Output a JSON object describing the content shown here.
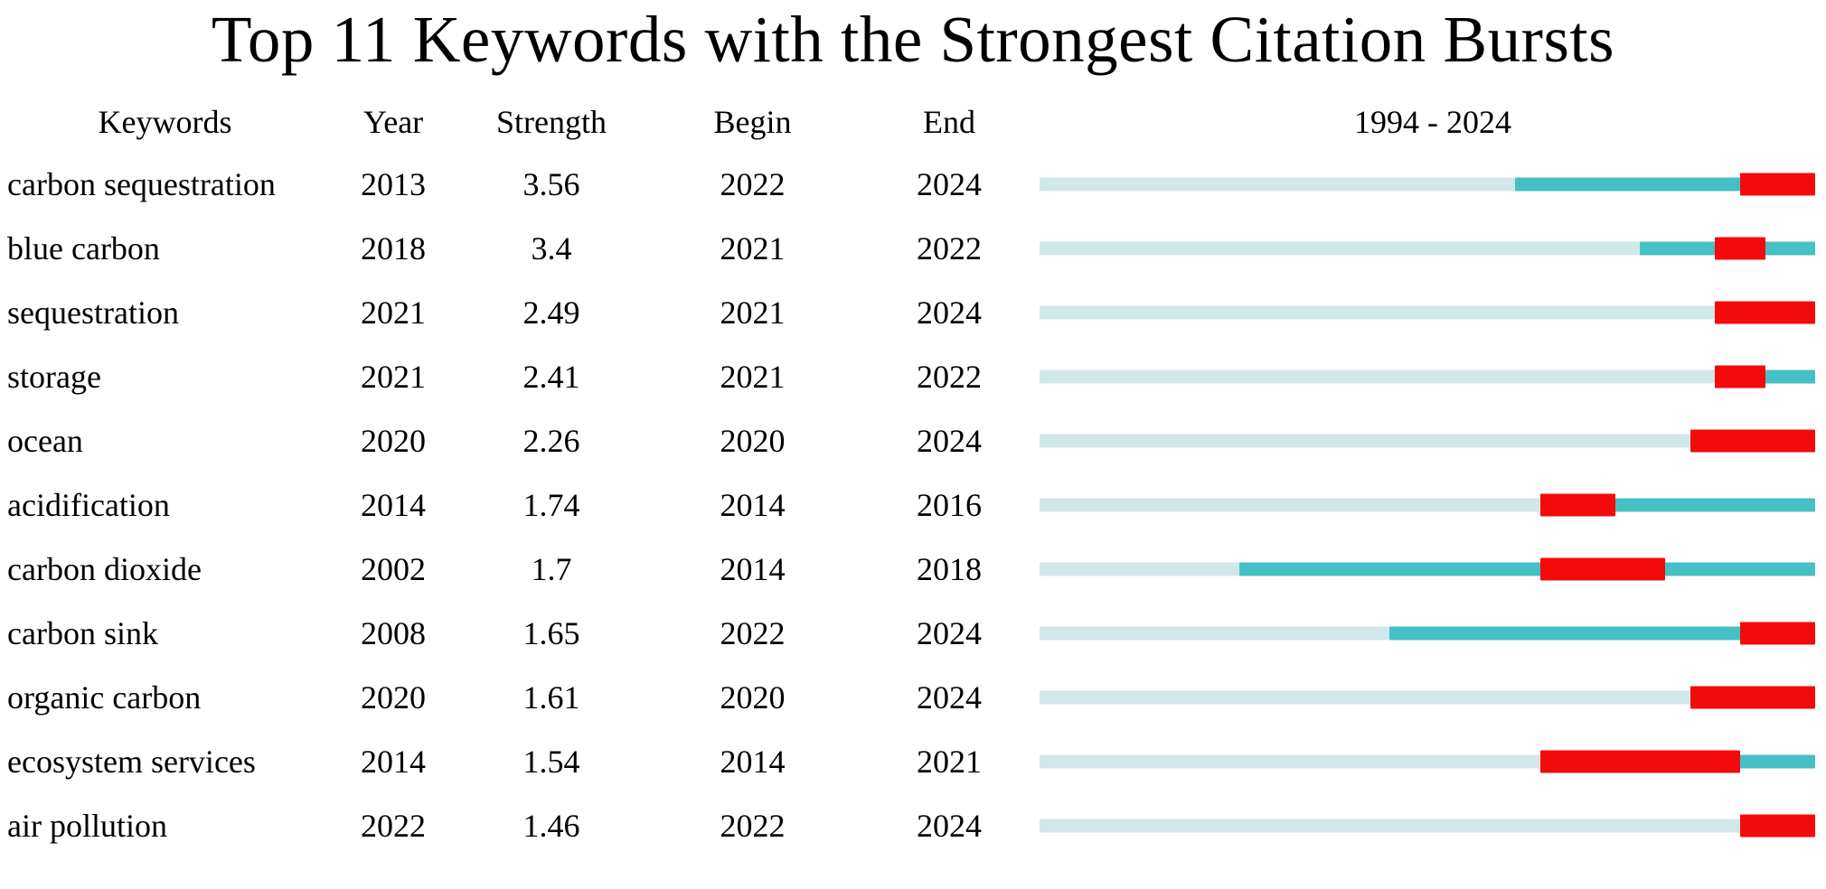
{
  "title": "Top 11 Keywords with the Strongest Citation Bursts",
  "table": {
    "columns": {
      "keywords": "Keywords",
      "year": "Year",
      "strength": "Strength",
      "begin": "Begin",
      "end": "End"
    },
    "timeline_header": "1994 - 2024"
  },
  "colors": {
    "pre_appearance_segment": "#d0e8ea",
    "active_segment": "#45c0c5",
    "burst_segment": "#f40a0a",
    "text": "#000000",
    "background": "#ffffff"
  },
  "chart_data": {
    "type": "table",
    "title": "Top 11 Keywords with the Strongest Citation Bursts",
    "timeline": {
      "label": "1994 - 2024",
      "start_year": 1994,
      "end_year": 2024
    },
    "legend_semantics": {
      "light_segment": "years before keyword first appearance",
      "teal_segment": "years keyword active",
      "red_segment": "citation burst interval (Begin to End inclusive)"
    },
    "rows": [
      {
        "keyword": "carbon sequestration",
        "year": "2013",
        "strength": "3.56",
        "begin": "2022",
        "end": "2024"
      },
      {
        "keyword": "blue carbon",
        "year": "2018",
        "strength": "3.4",
        "begin": "2021",
        "end": "2022"
      },
      {
        "keyword": "sequestration",
        "year": "2021",
        "strength": "2.49",
        "begin": "2021",
        "end": "2024"
      },
      {
        "keyword": "storage",
        "year": "2021",
        "strength": "2.41",
        "begin": "2021",
        "end": "2022"
      },
      {
        "keyword": "ocean",
        "year": "2020",
        "strength": "2.26",
        "begin": "2020",
        "end": "2024"
      },
      {
        "keyword": "acidification",
        "year": "2014",
        "strength": "1.74",
        "begin": "2014",
        "end": "2016"
      },
      {
        "keyword": "carbon dioxide",
        "year": "2002",
        "strength": "1.7",
        "begin": "2014",
        "end": "2018"
      },
      {
        "keyword": "carbon sink",
        "year": "2008",
        "strength": "1.65",
        "begin": "2022",
        "end": "2024"
      },
      {
        "keyword": "organic carbon",
        "year": "2020",
        "strength": "1.61",
        "begin": "2020",
        "end": "2024"
      },
      {
        "keyword": "ecosystem services",
        "year": "2014",
        "strength": "1.54",
        "begin": "2014",
        "end": "2021"
      },
      {
        "keyword": "air pollution",
        "year": "2022",
        "strength": "1.46",
        "begin": "2022",
        "end": "2024"
      }
    ]
  }
}
